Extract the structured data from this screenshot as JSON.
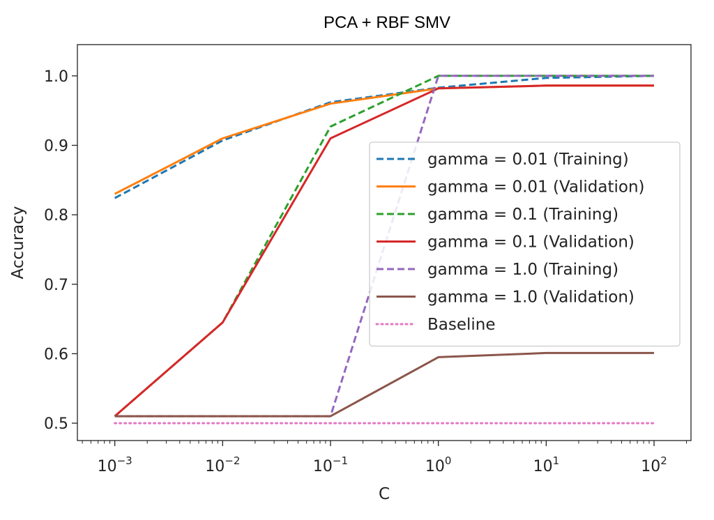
{
  "chart_data": {
    "type": "line",
    "title": "PCA + RBF SMV",
    "xlabel": "C",
    "ylabel": "Accuracy",
    "xscale": "log",
    "x": [
      0.001,
      0.01,
      0.1,
      1,
      10,
      100
    ],
    "xticks": [
      {
        "value": 0.001,
        "base": "10",
        "exp": "−3"
      },
      {
        "value": 0.01,
        "base": "10",
        "exp": "−2"
      },
      {
        "value": 0.1,
        "base": "10",
        "exp": "−1"
      },
      {
        "value": 1,
        "base": "10",
        "exp": "0"
      },
      {
        "value": 10,
        "base": "10",
        "exp": "1"
      },
      {
        "value": 100,
        "base": "10",
        "exp": "2"
      }
    ],
    "xlim": [
      0.00045,
      220
    ],
    "ylim": [
      0.475,
      1.045
    ],
    "yticks": [
      {
        "value": 0.5,
        "label": "0.5"
      },
      {
        "value": 0.6,
        "label": "0.6"
      },
      {
        "value": 0.7,
        "label": "0.7"
      },
      {
        "value": 0.8,
        "label": "0.8"
      },
      {
        "value": 0.9,
        "label": "0.9"
      },
      {
        "value": 1.0,
        "label": "1.0"
      }
    ],
    "grid": false,
    "legend_position": "center-right",
    "series": [
      {
        "name": "gamma = 0.01 (Training)",
        "values": [
          0.824,
          0.907,
          0.962,
          0.983,
          0.997,
          1.0
        ],
        "color": "#1f77b4",
        "style": "dashed"
      },
      {
        "name": "gamma = 0.01 (Validation)",
        "values": [
          0.83,
          0.91,
          0.96,
          0.982,
          0.986,
          0.986
        ],
        "color": "#ff7f0e",
        "style": "solid"
      },
      {
        "name": "gamma = 0.1 (Training)",
        "values": [
          0.51,
          0.645,
          0.927,
          1.0,
          1.0,
          1.0
        ],
        "color": "#2ca02c",
        "style": "dashed"
      },
      {
        "name": "gamma = 0.1 (Validation)",
        "values": [
          0.51,
          0.645,
          0.91,
          0.982,
          0.986,
          0.986
        ],
        "color": "#d62728",
        "style": "solid"
      },
      {
        "name": "gamma = 1.0 (Training)",
        "values": [
          0.51,
          0.51,
          0.51,
          1.0,
          1.0,
          1.0
        ],
        "color": "#9467bd",
        "style": "dashed"
      },
      {
        "name": "gamma = 1.0 (Validation)",
        "values": [
          0.51,
          0.51,
          0.51,
          0.595,
          0.601,
          0.601
        ],
        "color": "#8c564b",
        "style": "solid"
      },
      {
        "name": "Baseline",
        "values": [
          0.5,
          0.5,
          0.5,
          0.5,
          0.5,
          0.5
        ],
        "color": "#e377c2",
        "style": "dotted"
      }
    ]
  }
}
